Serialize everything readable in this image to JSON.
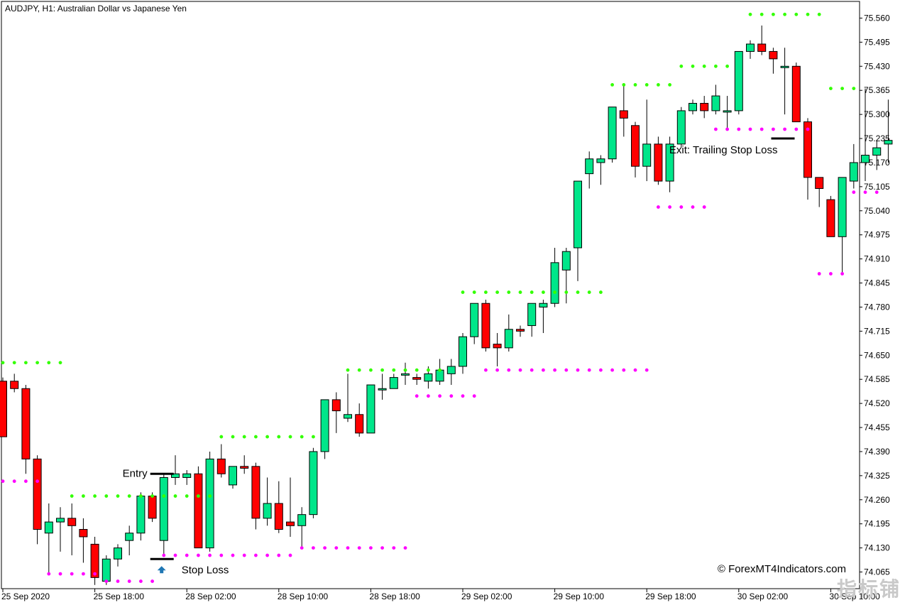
{
  "header": {
    "title": "AUDJPY, H1:  Australian Dollar vs Japanese Yen"
  },
  "annotations": {
    "entry": "Entry",
    "stop_loss": "Stop Loss",
    "exit": "Exit: Trailing Stop Loss",
    "copyright": "© ForexMT4Indicators.com"
  },
  "watermark": "指标铺",
  "colors": {
    "bull": "#00e68a",
    "bear": "#ff0000",
    "upper_dots": "#33ff00",
    "lower_dots": "#ff00ff",
    "arrow": "#1f77b4",
    "marker": "#000000"
  },
  "chart_data": {
    "type": "candlestick",
    "symbol": "AUDJPY",
    "timeframe": "H1",
    "ylim": [
      74.02,
      75.605
    ],
    "y_ticks": [
      "75.560",
      "75.495",
      "75.430",
      "75.365",
      "75.300",
      "75.235",
      "75.170",
      "75.105",
      "75.040",
      "74.975",
      "74.910",
      "74.845",
      "74.780",
      "74.715",
      "74.650",
      "74.585",
      "74.520",
      "74.455",
      "74.390",
      "74.325",
      "74.260",
      "74.195",
      "74.130",
      "74.065"
    ],
    "x_tick_labels": [
      {
        "label": "25 Sep 2020",
        "index": 0
      },
      {
        "label": "25 Sep 18:00",
        "index": 8
      },
      {
        "label": "28 Sep 02:00",
        "index": 16
      },
      {
        "label": "28 Sep 10:00",
        "index": 24
      },
      {
        "label": "28 Sep 18:00",
        "index": 32
      },
      {
        "label": "29 Sep 02:00",
        "index": 40
      },
      {
        "label": "29 Sep 10:00",
        "index": 48
      },
      {
        "label": "29 Sep 18:00",
        "index": 56
      },
      {
        "label": "30 Sep 02:00",
        "index": 64
      },
      {
        "label": "30 Sep 10:00",
        "index": 72
      }
    ],
    "candles": [
      [
        74.58,
        74.59,
        74.43,
        74.43
      ],
      [
        74.58,
        74.6,
        74.55,
        74.56
      ],
      [
        74.56,
        74.57,
        74.33,
        74.37
      ],
      [
        74.37,
        74.38,
        74.14,
        74.18
      ],
      [
        74.17,
        74.25,
        74.06,
        74.2
      ],
      [
        74.2,
        74.24,
        74.12,
        74.21
      ],
      [
        74.21,
        74.25,
        74.11,
        74.19
      ],
      [
        74.18,
        74.21,
        74.09,
        74.16
      ],
      [
        74.14,
        74.16,
        74.03,
        74.05
      ],
      [
        74.04,
        74.11,
        74.03,
        74.1
      ],
      [
        74.1,
        74.14,
        74.08,
        74.13
      ],
      [
        74.15,
        74.19,
        74.11,
        74.17
      ],
      [
        74.17,
        74.28,
        74.15,
        74.27
      ],
      [
        74.27,
        74.28,
        74.2,
        74.21
      ],
      [
        74.15,
        74.33,
        74.11,
        74.32
      ],
      [
        74.32,
        74.38,
        74.3,
        74.33
      ],
      [
        74.32,
        74.34,
        74.3,
        74.33
      ],
      [
        74.33,
        74.35,
        74.13,
        74.13
      ],
      [
        74.13,
        74.39,
        74.12,
        74.37
      ],
      [
        74.37,
        74.41,
        74.32,
        74.33
      ],
      [
        74.3,
        74.35,
        74.29,
        74.35
      ],
      [
        74.35,
        74.38,
        74.33,
        74.345
      ],
      [
        74.35,
        74.36,
        74.18,
        74.21
      ],
      [
        74.21,
        74.32,
        74.19,
        74.25
      ],
      [
        74.25,
        74.31,
        74.17,
        74.18
      ],
      [
        74.2,
        74.32,
        74.16,
        74.19
      ],
      [
        74.19,
        74.24,
        74.13,
        74.22
      ],
      [
        74.22,
        74.4,
        74.21,
        74.39
      ],
      [
        74.39,
        74.53,
        74.37,
        74.53
      ],
      [
        74.53,
        74.55,
        74.44,
        74.5
      ],
      [
        74.48,
        74.6,
        74.47,
        74.49
      ],
      [
        74.49,
        74.52,
        74.43,
        74.44
      ],
      [
        74.44,
        74.57,
        74.44,
        74.57
      ],
      [
        74.56,
        74.6,
        74.53,
        74.56
      ],
      [
        74.56,
        74.6,
        74.56,
        74.59
      ],
      [
        74.6,
        74.63,
        74.57,
        74.6
      ],
      [
        74.59,
        74.6,
        74.57,
        74.585
      ],
      [
        74.58,
        74.62,
        74.56,
        74.6
      ],
      [
        74.58,
        74.64,
        74.57,
        74.61
      ],
      [
        74.6,
        74.64,
        74.57,
        74.62
      ],
      [
        74.62,
        74.71,
        74.6,
        74.7
      ],
      [
        74.7,
        74.79,
        74.68,
        74.79
      ],
      [
        74.79,
        74.8,
        74.66,
        74.67
      ],
      [
        74.68,
        74.71,
        74.62,
        74.67
      ],
      [
        74.67,
        74.76,
        74.66,
        74.72
      ],
      [
        74.72,
        74.73,
        74.7,
        74.715
      ],
      [
        74.73,
        74.79,
        74.7,
        74.79
      ],
      [
        74.78,
        74.8,
        74.71,
        74.79
      ],
      [
        74.79,
        74.94,
        74.78,
        74.9
      ],
      [
        74.88,
        74.94,
        74.79,
        74.93
      ],
      [
        74.94,
        75.12,
        74.85,
        75.12
      ],
      [
        75.14,
        75.2,
        75.1,
        75.18
      ],
      [
        75.17,
        75.19,
        75.11,
        75.18
      ],
      [
        75.18,
        75.32,
        75.17,
        75.32
      ],
      [
        75.31,
        75.38,
        75.24,
        75.29
      ],
      [
        75.27,
        75.28,
        75.13,
        75.16
      ],
      [
        75.16,
        75.34,
        75.12,
        75.22
      ],
      [
        75.22,
        75.24,
        75.11,
        75.12
      ],
      [
        75.12,
        75.24,
        75.09,
        75.22
      ],
      [
        75.22,
        75.32,
        75.21,
        75.31
      ],
      [
        75.31,
        75.34,
        75.3,
        75.33
      ],
      [
        75.33,
        75.35,
        75.29,
        75.31
      ],
      [
        75.31,
        75.38,
        75.3,
        75.35
      ],
      [
        75.31,
        75.35,
        75.26,
        75.31
      ],
      [
        75.31,
        75.46,
        75.3,
        75.47
      ],
      [
        75.47,
        75.5,
        75.45,
        75.49
      ],
      [
        75.49,
        75.54,
        75.46,
        75.47
      ],
      [
        75.47,
        75.48,
        75.41,
        75.45
      ],
      [
        75.43,
        75.48,
        75.3,
        75.43
      ],
      [
        75.43,
        75.44,
        75.28,
        75.28
      ],
      [
        75.28,
        75.29,
        75.07,
        75.13
      ],
      [
        75.13,
        75.13,
        75.05,
        75.1
      ],
      [
        75.07,
        75.08,
        74.97,
        74.97
      ],
      [
        74.97,
        75.13,
        74.87,
        75.13
      ],
      [
        75.12,
        75.22,
        75.1,
        75.17
      ],
      [
        75.17,
        75.37,
        75.12,
        75.19
      ],
      [
        75.19,
        75.23,
        75.15,
        75.21
      ],
      [
        75.22,
        75.34,
        75.17,
        75.23
      ]
    ],
    "upper_dot_segments": [
      {
        "start": 0,
        "end": 5,
        "price": 74.63
      },
      {
        "start": 6,
        "end": 18,
        "price": 74.27
      },
      {
        "start": 19,
        "end": 27,
        "price": 74.43
      },
      {
        "start": 30,
        "end": 38,
        "price": 74.61
      },
      {
        "start": 40,
        "end": 52,
        "price": 74.82
      },
      {
        "start": 53,
        "end": 58,
        "price": 75.38
      },
      {
        "start": 59,
        "end": 63,
        "price": 75.43
      },
      {
        "start": 65,
        "end": 71,
        "price": 75.57
      },
      {
        "start": 72,
        "end": 74,
        "price": 75.37
      }
    ],
    "lower_dot_segments": [
      {
        "start": 0,
        "end": 3,
        "price": 74.31
      },
      {
        "start": 4,
        "end": 8,
        "price": 74.06
      },
      {
        "start": 9,
        "end": 13,
        "price": 74.04
      },
      {
        "start": 14,
        "end": 25,
        "price": 74.11
      },
      {
        "start": 26,
        "end": 35,
        "price": 74.13
      },
      {
        "start": 36,
        "end": 41,
        "price": 74.54
      },
      {
        "start": 42,
        "end": 56,
        "price": 74.61
      },
      {
        "start": 57,
        "end": 61,
        "price": 75.05
      },
      {
        "start": 62,
        "end": 70,
        "price": 75.26
      },
      {
        "start": 71,
        "end": 73,
        "price": 74.87
      },
      {
        "start": 74,
        "end": 76,
        "price": 75.09
      }
    ],
    "entry_price": 74.33,
    "stop_loss_price": 74.1,
    "exit_price": 75.235
  }
}
